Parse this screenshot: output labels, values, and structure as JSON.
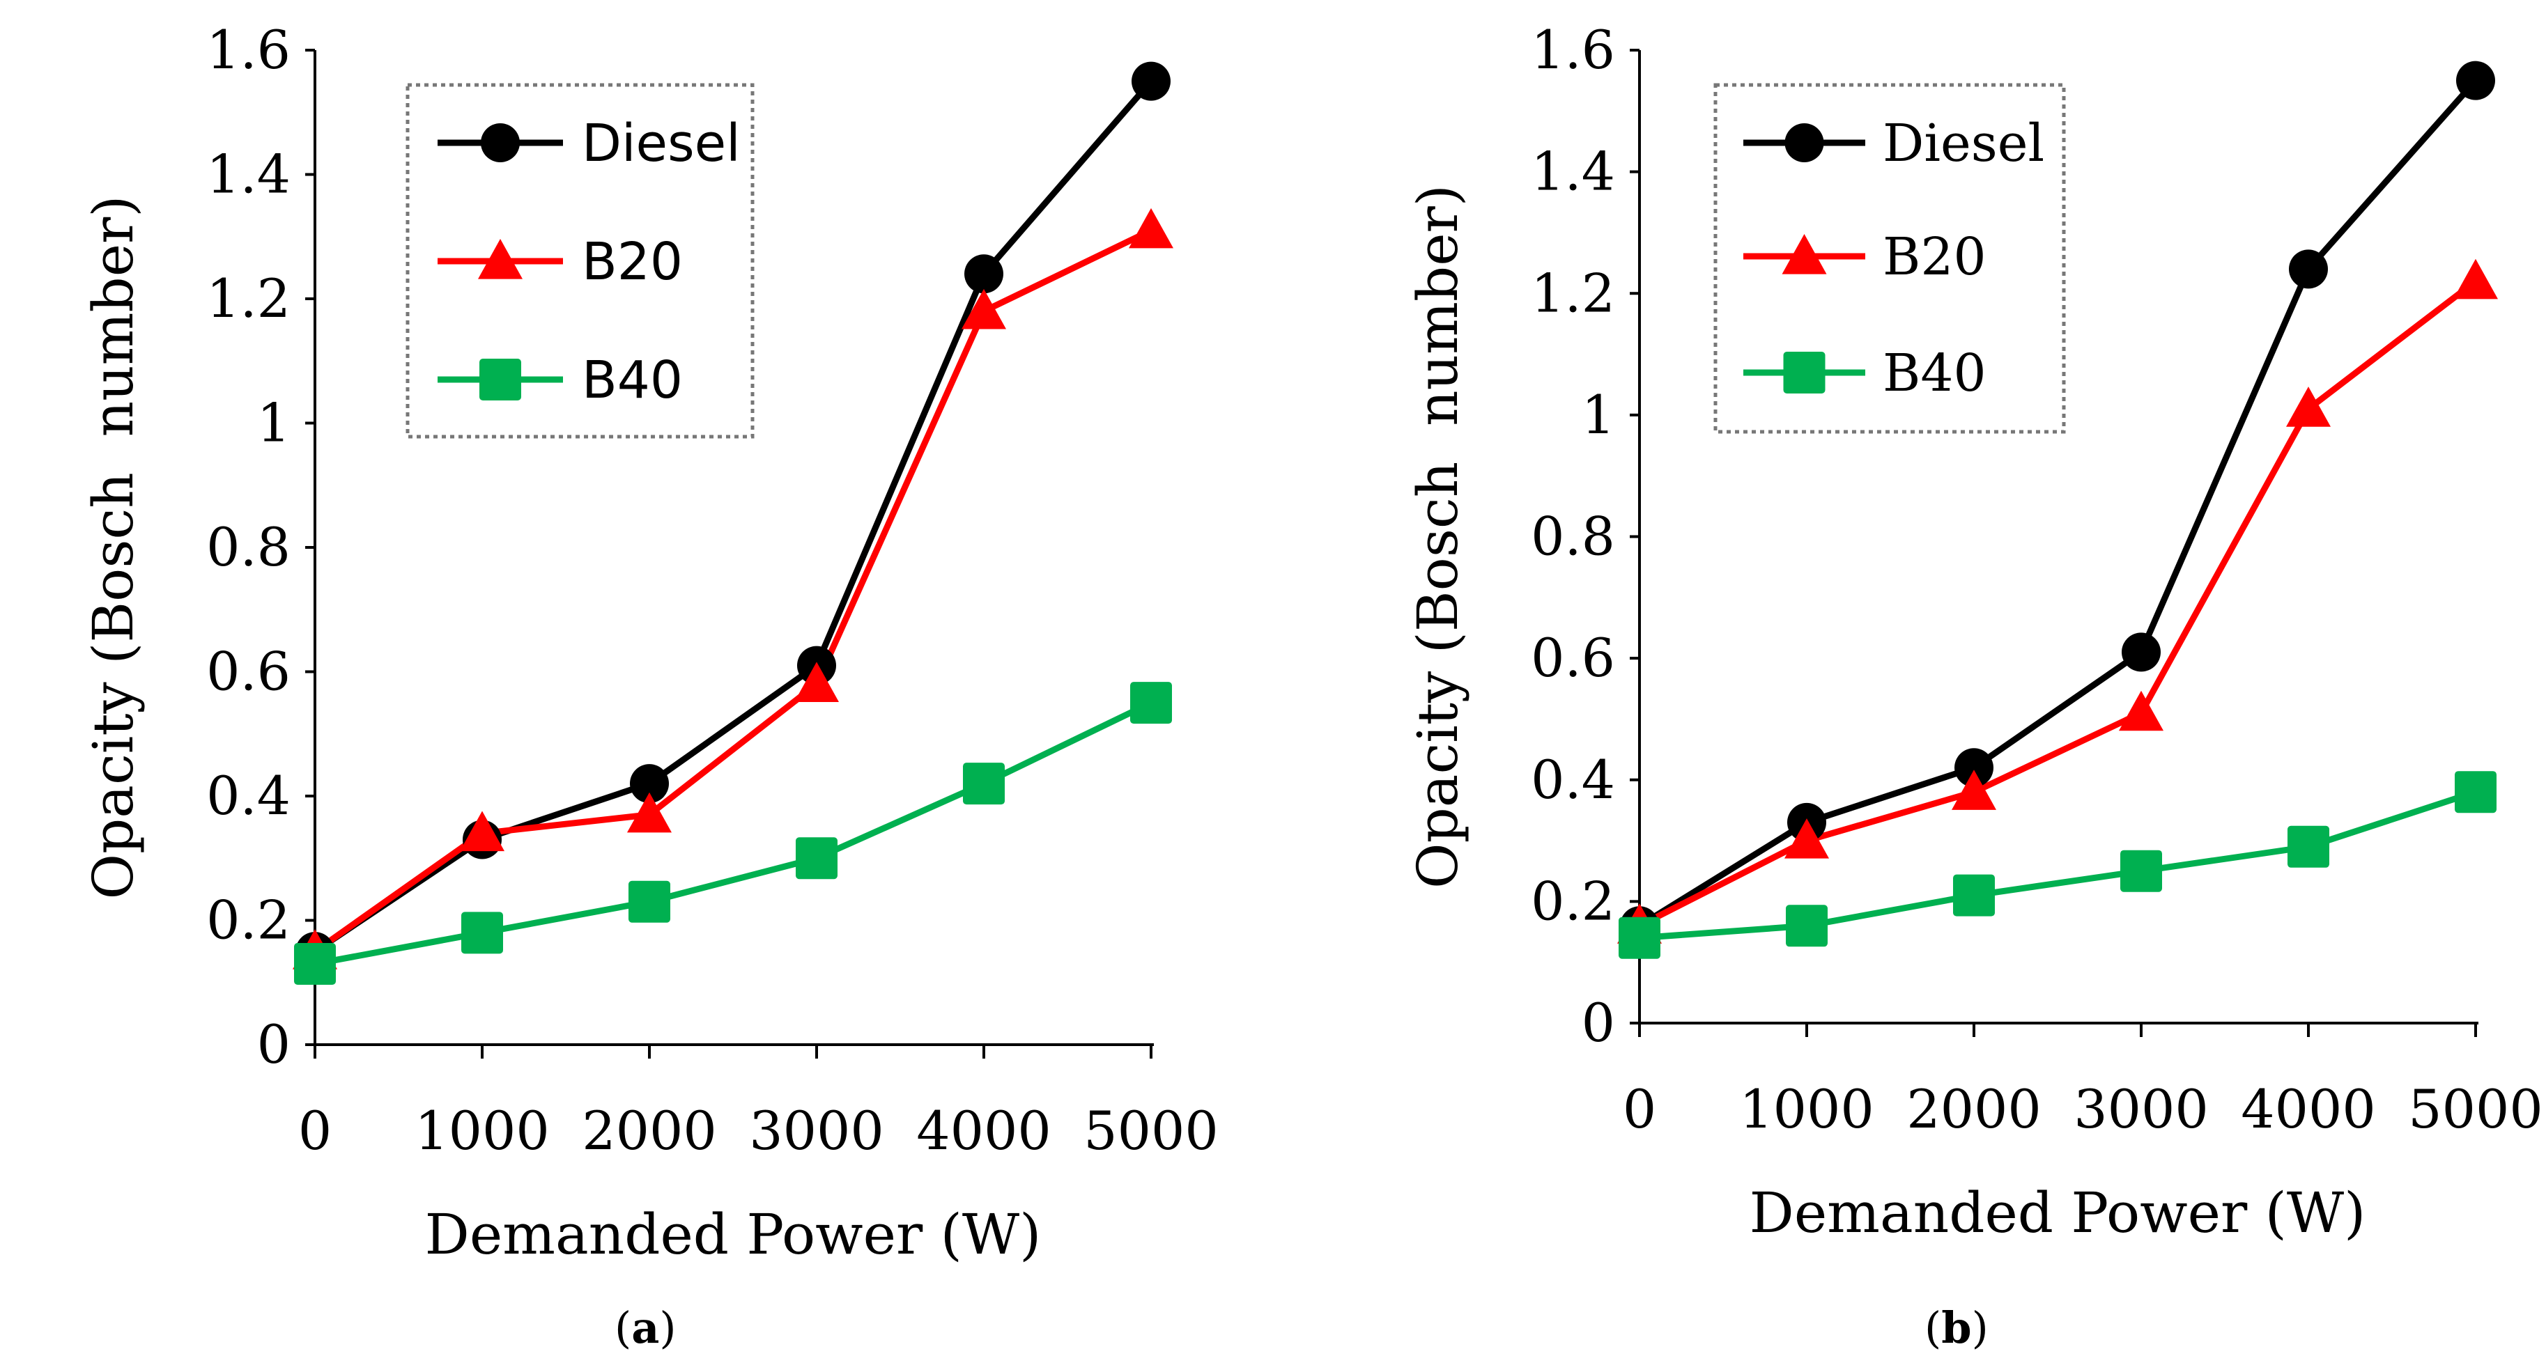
{
  "chart_data": [
    {
      "type": "line",
      "panel": "a",
      "caption_open": "(",
      "caption_letter": "a",
      "caption_close": ")",
      "title": "",
      "xlabel": "Demanded Power (W)",
      "ylabel": "Opacity (Bosch  number)",
      "x": [
        0,
        1000,
        2000,
        3000,
        4000,
        5000
      ],
      "x_tick_labels": [
        "0",
        "1000",
        "2000",
        "3000",
        "4000",
        "5000"
      ],
      "xlim": [
        0,
        5000
      ],
      "ylim": [
        0,
        1.6
      ],
      "y_ticks": [
        0,
        0.2,
        0.4,
        0.6,
        0.8,
        1,
        1.2,
        1.4,
        1.6
      ],
      "y_tick_labels": [
        "0",
        "0.2",
        "0.4",
        "0.6",
        "0.8",
        "1",
        "1.2",
        "1.4",
        "1.6"
      ],
      "grid": false,
      "legend_position": "top-left",
      "series": [
        {
          "name": "Diesel",
          "color": "#000000",
          "marker": "circle",
          "values": [
            0.15,
            0.33,
            0.42,
            0.61,
            1.24,
            1.55
          ]
        },
        {
          "name": "B20",
          "color": "#ff0000",
          "marker": "triangle",
          "values": [
            0.15,
            0.34,
            0.37,
            0.58,
            1.18,
            1.31
          ]
        },
        {
          "name": "B40",
          "color": "#00b050",
          "marker": "square",
          "values": [
            0.13,
            0.18,
            0.23,
            0.3,
            0.42,
            0.55
          ]
        }
      ]
    },
    {
      "type": "line",
      "panel": "b",
      "caption_open": "(",
      "caption_letter": "b",
      "caption_close": ")",
      "title": "",
      "xlabel": "Demanded Power (W)",
      "ylabel": "Opacity (Bosch  number)",
      "x": [
        0,
        1000,
        2000,
        3000,
        4000,
        5000
      ],
      "x_tick_labels": [
        "0",
        "1000",
        "2000",
        "3000",
        "4000",
        "5000"
      ],
      "xlim": [
        0,
        5000
      ],
      "ylim": [
        0,
        1.6
      ],
      "y_ticks": [
        0,
        0.2,
        0.4,
        0.6,
        0.8,
        1,
        1.2,
        1.4,
        1.6
      ],
      "y_tick_labels": [
        "0",
        "0.2",
        "0.4",
        "0.6",
        "0.8",
        "1",
        "1.2",
        "1.4",
        "1.6"
      ],
      "grid": false,
      "legend_position": "top-left",
      "series": [
        {
          "name": "Diesel",
          "color": "#000000",
          "marker": "circle",
          "values": [
            0.16,
            0.33,
            0.42,
            0.61,
            1.24,
            1.55
          ]
        },
        {
          "name": "B20",
          "color": "#ff0000",
          "marker": "triangle",
          "values": [
            0.16,
            0.3,
            0.38,
            0.51,
            1.01,
            1.22
          ]
        },
        {
          "name": "B40",
          "color": "#00b050",
          "marker": "square",
          "values": [
            0.14,
            0.16,
            0.21,
            0.25,
            0.29,
            0.38
          ]
        }
      ]
    }
  ]
}
